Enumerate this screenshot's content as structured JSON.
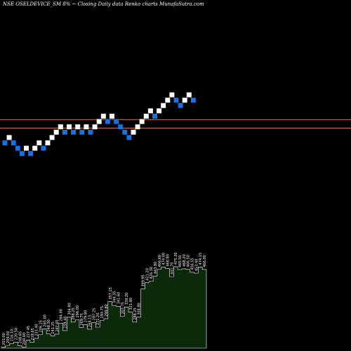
{
  "chart_data": {
    "type": "renko",
    "title": "NSE OSELDEVICE_SM 8% ~  Closing Daily data  Renko  charts MunafaSutra.com",
    "colors": {
      "background": "#000000",
      "up_brick": "#ffffff",
      "down_brick": "#1e6fdc",
      "reference_line": "#c8782a",
      "volume_fill": "#0a2a0a",
      "volume_stroke": "#ffffff",
      "volume_label": "#ffffff"
    },
    "bricks": [
      {
        "dir": "down",
        "level": 0
      },
      {
        "dir": "up",
        "level": 1
      },
      {
        "dir": "down",
        "level": 0
      },
      {
        "dir": "down",
        "level": -1
      },
      {
        "dir": "down",
        "level": -2
      },
      {
        "dir": "up",
        "level": -1
      },
      {
        "dir": "down",
        "level": -2
      },
      {
        "dir": "up",
        "level": -1
      },
      {
        "dir": "up",
        "level": 0
      },
      {
        "dir": "down",
        "level": -1
      },
      {
        "dir": "up",
        "level": 0
      },
      {
        "dir": "up",
        "level": 1
      },
      {
        "dir": "up",
        "level": 2
      },
      {
        "dir": "up",
        "level": 3
      },
      {
        "dir": "down",
        "level": 2
      },
      {
        "dir": "up",
        "level": 3
      },
      {
        "dir": "down",
        "level": 2
      },
      {
        "dir": "up",
        "level": 3
      },
      {
        "dir": "down",
        "level": 2
      },
      {
        "dir": "up",
        "level": 3
      },
      {
        "dir": "down",
        "level": 2
      },
      {
        "dir": "up",
        "level": 3
      },
      {
        "dir": "up",
        "level": 4
      },
      {
        "dir": "up",
        "level": 5
      },
      {
        "dir": "down",
        "level": 4
      },
      {
        "dir": "up",
        "level": 5
      },
      {
        "dir": "down",
        "level": 4
      },
      {
        "dir": "down",
        "level": 3
      },
      {
        "dir": "down",
        "level": 2
      },
      {
        "dir": "down",
        "level": 1
      },
      {
        "dir": "up",
        "level": 2
      },
      {
        "dir": "up",
        "level": 3
      },
      {
        "dir": "up",
        "level": 4
      },
      {
        "dir": "up",
        "level": 5
      },
      {
        "dir": "up",
        "level": 6
      },
      {
        "dir": "down",
        "level": 5
      },
      {
        "dir": "up",
        "level": 6
      },
      {
        "dir": "up",
        "level": 7
      },
      {
        "dir": "up",
        "level": 8
      },
      {
        "dir": "up",
        "level": 9
      },
      {
        "dir": "down",
        "level": 8
      },
      {
        "dir": "down",
        "level": 7
      },
      {
        "dir": "up",
        "level": 8
      },
      {
        "dir": "up",
        "level": 9
      },
      {
        "dir": "down",
        "level": 8
      }
    ],
    "reference_lines": [
      {
        "level": 3.9
      },
      {
        "level": 2.3
      }
    ],
    "volume_labels": [
      "203.00",
      "209.50",
      "216.10",
      "220.50",
      "208.65",
      "204.00",
      "227.45",
      "219.65",
      "233.40",
      "246.15",
      "265.00",
      "248.30",
      "241.25",
      "247.65",
      "284.00",
      "259.40",
      "304.80",
      "288.25",
      "296.00",
      "269.75",
      "279.80",
      "264.15",
      "287.25",
      "271.20",
      "293.75",
      "299.80",
      "357.15",
      "344.35",
      "341.60",
      "307.75",
      "339.20",
      "321.90",
      "288.25",
      "304.80",
      "399.95",
      "421.20",
      "426.30",
      "443.80",
      "466.60",
      "474.00",
      "468.80",
      "441.70",
      "475.30",
      "465.50",
      "468.20",
      "466.50",
      "456.55",
      "453.40",
      "474.15",
      "466.00"
    ],
    "volume_y_range": [
      200,
      475
    ]
  }
}
